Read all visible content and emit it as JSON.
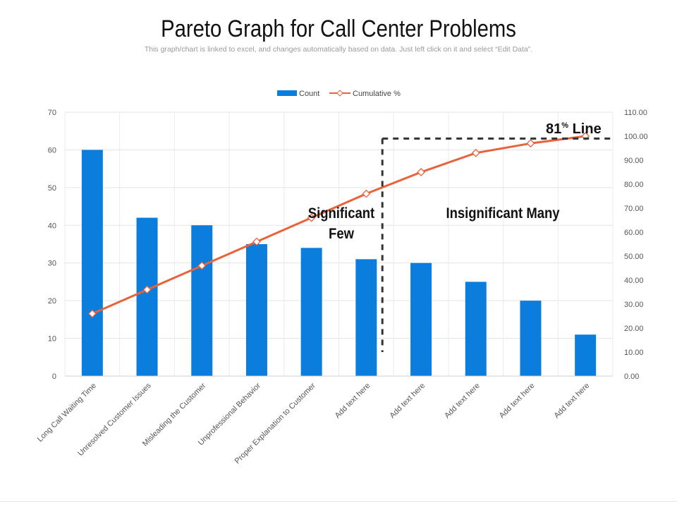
{
  "slide": {
    "title": "Pareto Graph for Call Center Problems",
    "subtitle": "This graph/chart is linked to excel, and changes automatically based on data. Just left click on it and select “Edit Data”."
  },
  "chart_data": {
    "type": "bar",
    "categories": [
      "Long Call Waiting Time",
      "Unresolved Customer Issues",
      "Misleading the Customer",
      "Unprofessional Behavior",
      "Proper Explanation to Customer",
      "Add text here",
      "Add text here",
      "Add text here",
      "Add text here",
      "Add text here"
    ],
    "series": [
      {
        "name": "Count",
        "type": "bar",
        "axis": "left",
        "color": "#0b7ddc",
        "values": [
          60,
          42,
          40,
          35,
          34,
          31,
          30,
          25,
          20,
          11
        ]
      },
      {
        "name": "Cumulative %",
        "type": "line",
        "axis": "right",
        "color": "#e8623a",
        "values": [
          26,
          36,
          46,
          56,
          66,
          76,
          85,
          93,
          97,
          100
        ]
      }
    ],
    "y_left": {
      "min": 0,
      "max": 70,
      "ticks": [
        "0",
        "10",
        "20",
        "30",
        "40",
        "50",
        "60",
        "70"
      ]
    },
    "y_right": {
      "min": 0,
      "max": 110,
      "ticks": [
        "0.00",
        "10.00",
        "20.00",
        "30.00",
        "40.00",
        "50.00",
        "60.00",
        "70.00",
        "80.00",
        "90.00",
        "100.00",
        "110.00"
      ]
    },
    "legend": {
      "position": "top",
      "items": [
        "Count",
        "Cumulative %"
      ]
    },
    "grid": true,
    "annotations": {
      "significant": "Significant Few",
      "insignificant": "Insignificant Many",
      "line_label_number": "81",
      "line_label_sup": "%",
      "line_label_word": " Line",
      "reference_value": 99
    }
  }
}
